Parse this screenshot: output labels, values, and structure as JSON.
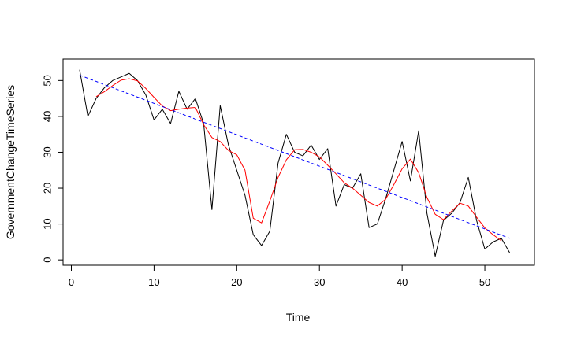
{
  "chart_data": {
    "type": "line",
    "xlabel": "Time",
    "ylabel": "GovernmentChangeTimeSeries",
    "xlim": [
      -1,
      56
    ],
    "ylim": [
      -1.5,
      56
    ],
    "xticks": [
      0,
      10,
      20,
      30,
      40,
      50
    ],
    "yticks": [
      0,
      10,
      20,
      30,
      40,
      50
    ],
    "grid": false,
    "series": [
      {
        "style": "solid",
        "color": "#000000",
        "x": [
          1,
          2,
          3,
          4,
          5,
          6,
          7,
          8,
          9,
          10,
          11,
          12,
          13,
          14,
          15,
          16,
          17,
          18,
          19,
          20,
          21,
          22,
          23,
          24,
          25,
          26,
          27,
          28,
          29,
          30,
          31,
          32,
          33,
          34,
          35,
          36,
          37,
          38,
          39,
          40,
          41,
          42,
          43,
          44,
          45,
          46,
          47,
          48,
          49,
          50,
          51,
          52,
          53
        ],
        "values": [
          53,
          40,
          45,
          48,
          50,
          51,
          52,
          50,
          46,
          39,
          42,
          38,
          47,
          42,
          45,
          38,
          14,
          43,
          32,
          25,
          18,
          7,
          4,
          8,
          27,
          35,
          30,
          29,
          32,
          28,
          31,
          15,
          21,
          20,
          24,
          9,
          10,
          17,
          25,
          33,
          22,
          36,
          13,
          1,
          11,
          13,
          16,
          23,
          11,
          3,
          5,
          6,
          2
        ]
      },
      {
        "style": "solid",
        "color": "#ff0000",
        "x": [
          3,
          4,
          5,
          6,
          7,
          8,
          9,
          10,
          11,
          12,
          13,
          14,
          15,
          16,
          17,
          18,
          19,
          20,
          21,
          22,
          23,
          24,
          25,
          26,
          27,
          28,
          29,
          30,
          31,
          32,
          33,
          34,
          35,
          36,
          37,
          38,
          39,
          40,
          41,
          42,
          43,
          44,
          45,
          46,
          47,
          48,
          49,
          50,
          51,
          52
        ],
        "values": [
          45.5,
          46.9,
          48.6,
          50.1,
          50.5,
          49.9,
          47.8,
          45.3,
          42.9,
          41.6,
          42.0,
          42.3,
          42.5,
          37.7,
          34.1,
          33.0,
          30.5,
          29.3,
          25.0,
          11.6,
          10.3,
          16.4,
          23.0,
          27.9,
          30.7,
          30.8,
          30.0,
          28.7,
          26.4,
          24.0,
          21.5,
          20.0,
          18.0,
          16.0,
          15.0,
          16.9,
          21.0,
          25.4,
          28.1,
          24.3,
          17.4,
          12.7,
          11.2,
          13.6,
          15.8,
          15.0,
          11.9,
          8.9,
          7.0,
          5.3
        ]
      },
      {
        "style": "dashed",
        "color": "#0000ff",
        "x": [
          1,
          53
        ],
        "values": [
          51.5,
          6.0
        ]
      }
    ]
  }
}
